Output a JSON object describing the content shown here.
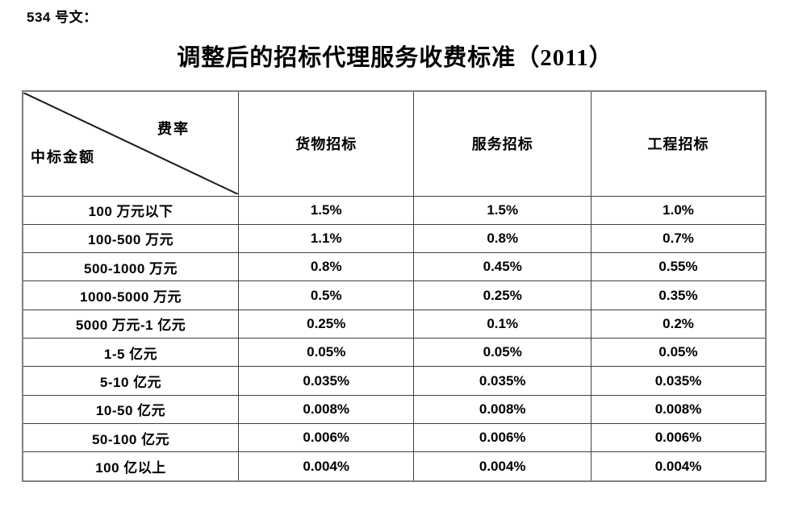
{
  "doc": {
    "ref_label": "534 号文：",
    "title": "调整后的招标代理服务收费标准（2011）"
  },
  "table": {
    "corner": {
      "top_right": "费率",
      "bottom_left": "中标金额"
    },
    "columns": [
      "货物招标",
      "服务招标",
      "工程招标"
    ],
    "rows": [
      {
        "label": "100 万元以下",
        "values": [
          "1.5%",
          "1.5%",
          "1.0%"
        ]
      },
      {
        "label": "100-500 万元",
        "values": [
          "1.1%",
          "0.8%",
          "0.7%"
        ]
      },
      {
        "label": "500-1000 万元",
        "values": [
          "0.8%",
          "0.45%",
          "0.55%"
        ]
      },
      {
        "label": "1000-5000 万元",
        "values": [
          "0.5%",
          "0.25%",
          "0.35%"
        ]
      },
      {
        "label": "5000 万元-1 亿元",
        "values": [
          "0.25%",
          "0.1%",
          "0.2%"
        ]
      },
      {
        "label": "1-5 亿元",
        "values": [
          "0.05%",
          "0.05%",
          "0.05%"
        ]
      },
      {
        "label": "5-10 亿元",
        "values": [
          "0.035%",
          "0.035%",
          "0.035%"
        ]
      },
      {
        "label": "10-50 亿元",
        "values": [
          "0.008%",
          "0.008%",
          "0.008%"
        ]
      },
      {
        "label": "50-100 亿元",
        "values": [
          "0.006%",
          "0.006%",
          "0.006%"
        ]
      },
      {
        "label": "100 亿以上",
        "values": [
          "0.004%",
          "0.004%",
          "0.004%"
        ]
      }
    ]
  },
  "colors": {
    "background": "#ffffff",
    "text": "#000000",
    "border_inner": "#404040",
    "border_outer": "#808080"
  }
}
